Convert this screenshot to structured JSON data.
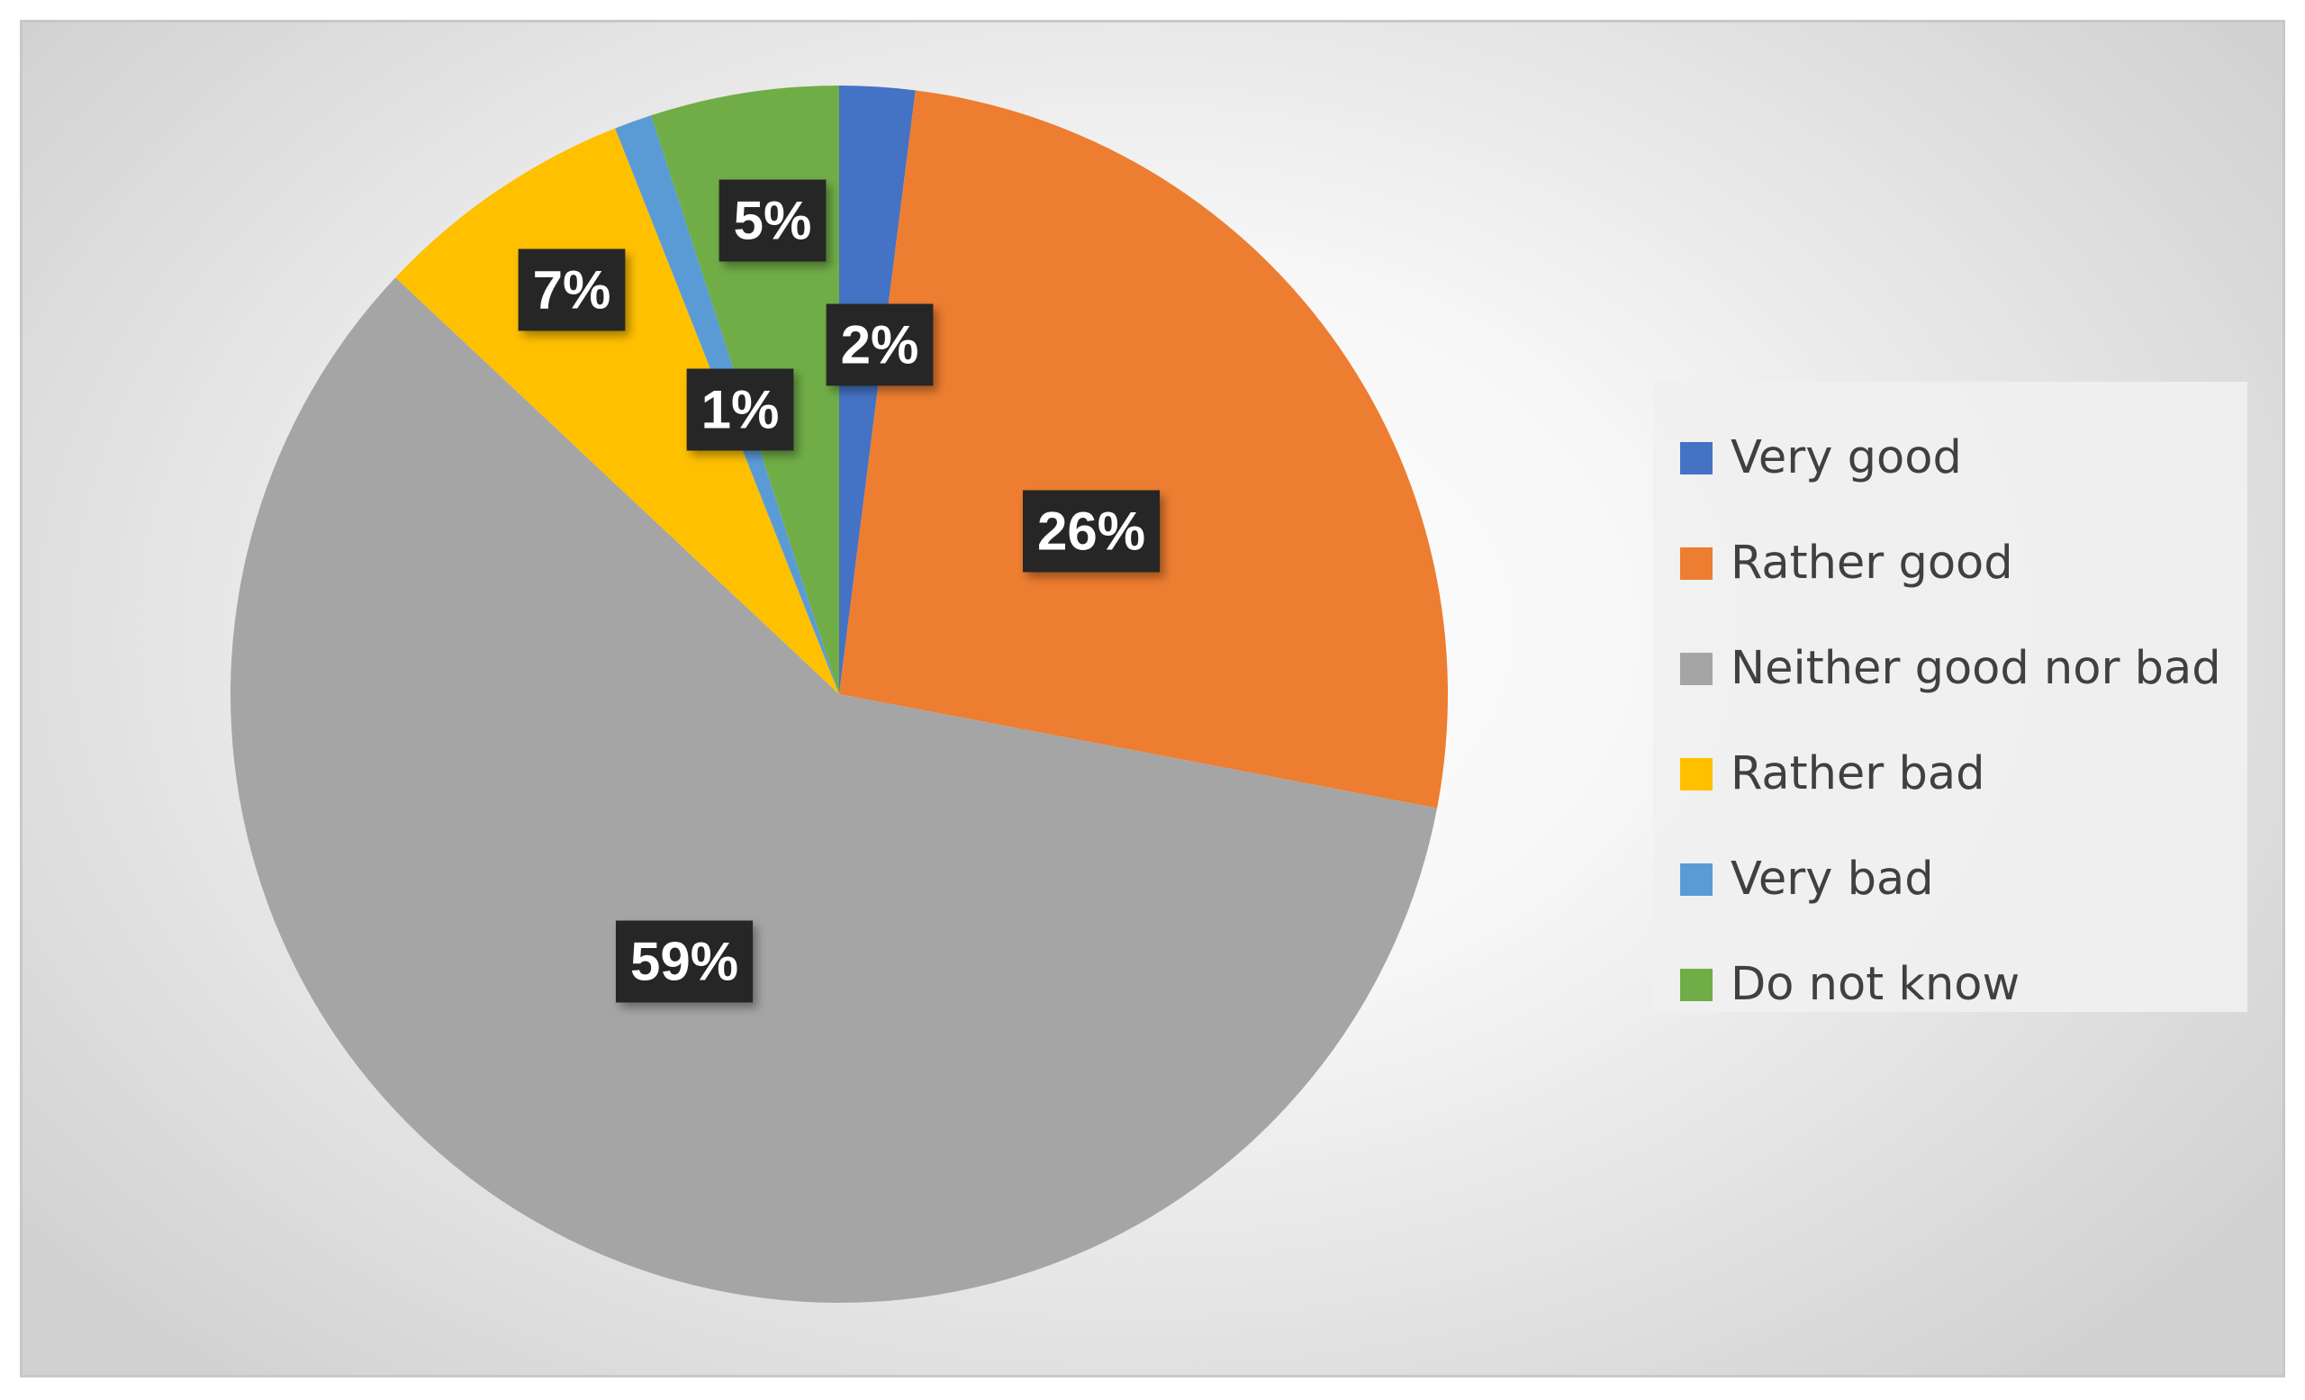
{
  "chart_data": {
    "type": "pie",
    "title": "",
    "slices": [
      {
        "label": "Very good",
        "value": 2,
        "value_label": "2%",
        "color": "#4472C4"
      },
      {
        "label": "Rather good",
        "value": 26,
        "value_label": "26%",
        "color": "#ED7D31"
      },
      {
        "label": "Neither good nor bad",
        "value": 59,
        "value_label": "59%",
        "color": "#A5A5A5"
      },
      {
        "label": "Rather bad",
        "value": 7,
        "value_label": "7%",
        "color": "#FFC000"
      },
      {
        "label": "Very bad",
        "value": 1,
        "value_label": "1%",
        "color": "#5B9BD5"
      },
      {
        "label": "Do not know",
        "value": 5,
        "value_label": "5%",
        "color": "#70AD47"
      }
    ],
    "legend_position": "right",
    "data_label_style": "dark box, white bold text"
  }
}
